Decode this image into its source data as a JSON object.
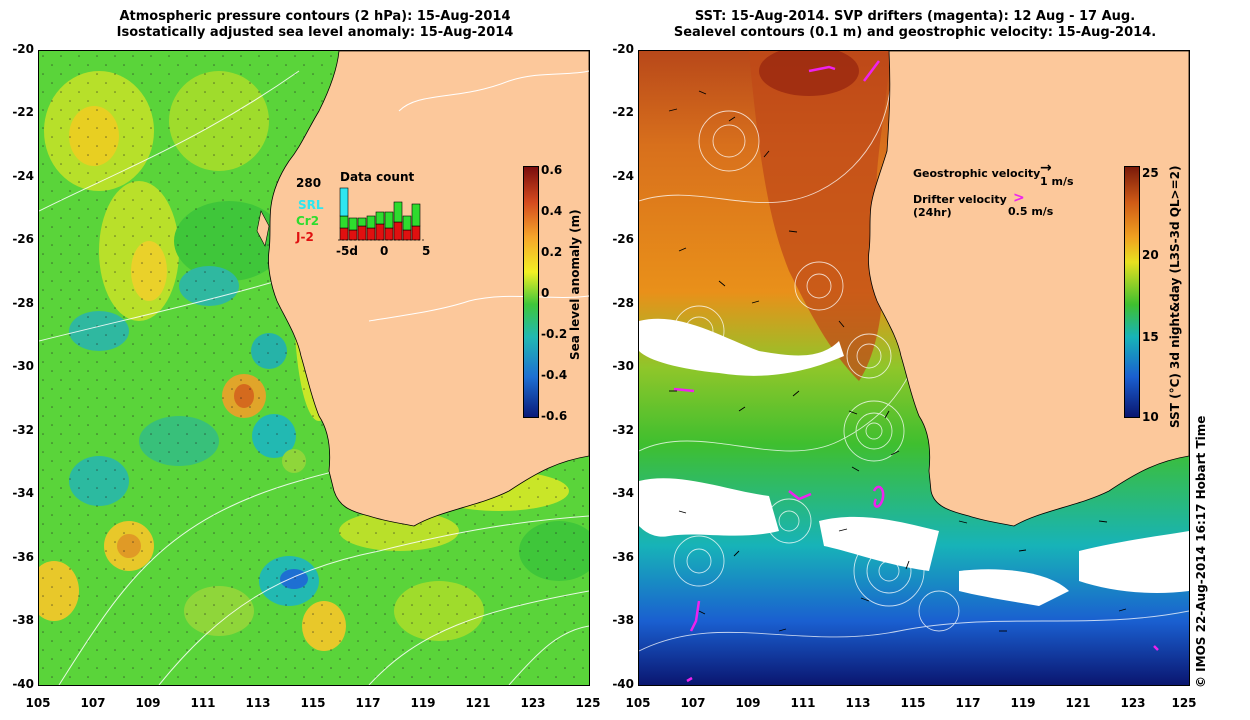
{
  "left_panel": {
    "title_line1": "Atmospheric pressure contours (2 hPa): 15-Aug-2014",
    "title_line2": "Isostatically adjusted sea level anomaly: 15-Aug-2014",
    "colorbar": {
      "label": "Sea level anomaly (m)",
      "ticks": [
        "0.6",
        "0.4",
        "0.2",
        "0",
        "-0.2",
        "-0.4",
        "-0.6"
      ],
      "colors": [
        "#7a0d0d",
        "#d44a1e",
        "#f6a52a",
        "#f3f024",
        "#3fc63a",
        "#22b9b2",
        "#1e6fd2",
        "#0a1a7a"
      ]
    },
    "inset": {
      "title": "Data count",
      "max_label": "280",
      "legend": [
        {
          "label": "SRL",
          "color": "#2ee6f0"
        },
        {
          "label": "Cr2",
          "color": "#2edc2e"
        },
        {
          "label": "J-2",
          "color": "#e01010"
        }
      ],
      "xticks": [
        "-5d",
        "0",
        "5"
      ]
    }
  },
  "right_panel": {
    "title_line1": "SST: 15-Aug-2014. SVP drifters (magenta): 12 Aug - 17 Aug.",
    "title_line2": "Sealevel contours (0.1 m) and geostrophic velocity: 15-Aug-2014.",
    "colorbar": {
      "label": "SST (°C) 3d night&day (L3S-3d QL>=2)",
      "ticks": [
        "25",
        "20",
        "15",
        "10"
      ],
      "colors": [
        "#7a1a0a",
        "#cf5a16",
        "#f0a020",
        "#e8e020",
        "#3fbf2f",
        "#17b3b8",
        "#1a5fd0",
        "#0a1670"
      ]
    },
    "legend": {
      "geostrophic_label": "Geostrophic velocity",
      "geostrophic_scale": "1 m/s",
      "drifter_label": "Drifter velocity",
      "drifter_sub": "(24hr)",
      "drifter_scale": "0.5 m/s"
    }
  },
  "axes": {
    "y_ticks": [
      "-20",
      "-22",
      "-24",
      "-26",
      "-28",
      "-30",
      "-32",
      "-34",
      "-36",
      "-38",
      "-40"
    ],
    "x_ticks": [
      "105",
      "107",
      "109",
      "111",
      "113",
      "115",
      "117",
      "119",
      "121",
      "123",
      "125"
    ]
  },
  "colors": {
    "land": "#fcc89b",
    "ocean_green": "#5ad43a",
    "ocean_orange": "#e9901a",
    "drifter": "#ee22ee"
  },
  "credit": "© IMOS 22-Aug-2014 16:17 Hobart Time"
}
